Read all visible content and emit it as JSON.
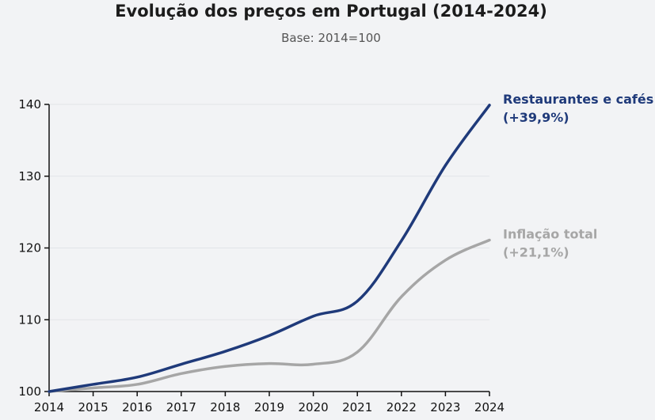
{
  "chart_data": {
    "type": "line",
    "title": "Evolução dos preços em Portugal (2014-2024)",
    "subtitle": "Base: 2014=100",
    "x": [
      2014,
      2015,
      2016,
      2017,
      2018,
      2019,
      2020,
      2021,
      2022,
      2023,
      2024
    ],
    "x_tick_labels": [
      "2014",
      "2015",
      "2016",
      "2017",
      "2018",
      "2019",
      "2020",
      "2021",
      "2022",
      "2023",
      "2024"
    ],
    "ylim": [
      100,
      140
    ],
    "y_ticks": [
      100,
      110,
      120,
      130,
      140
    ],
    "y_tick_labels": [
      "100",
      "110",
      "120",
      "130",
      "140"
    ],
    "grid": "horizontal",
    "legend": "direct-labels-right",
    "series": [
      {
        "name": "Restaurantes e cafés",
        "change_label": "(+39,9%)",
        "color": "#1f3a7a",
        "values": [
          100,
          101.0,
          102.0,
          103.8,
          105.6,
          107.8,
          110.5,
          112.6,
          121.0,
          131.5,
          139.9
        ]
      },
      {
        "name": "Inflação total",
        "change_label": "(+21,1%)",
        "color": "#a6a6a6",
        "values": [
          100,
          100.5,
          101.0,
          102.5,
          103.5,
          103.9,
          103.8,
          105.5,
          113.2,
          118.3,
          121.1
        ]
      }
    ]
  }
}
